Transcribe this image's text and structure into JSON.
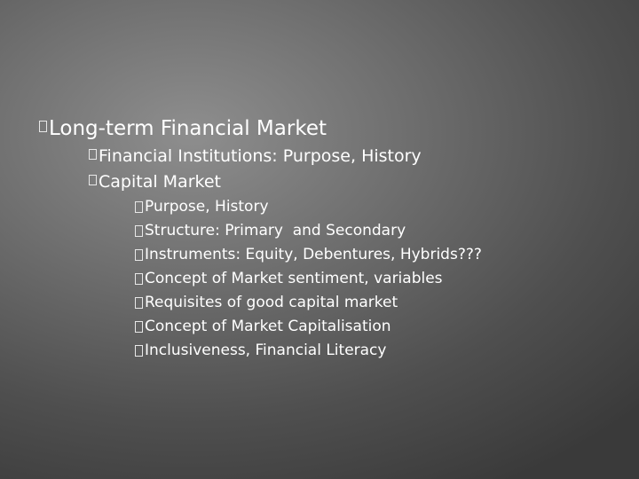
{
  "slide": {
    "heading": "Long-term Financial Market",
    "level2": [
      "Financial Institutions: Purpose, History",
      "Capital Market"
    ],
    "level3": [
      "Purpose, History",
      "Structure: Primary  and Secondary",
      "Instruments: Equity, Debentures, Hybrids???",
      "Concept of Market sentiment, variables",
      "Requisites of good capital market",
      "Concept of Market Capitalisation",
      "Inclusiveness, Financial Literacy"
    ]
  }
}
